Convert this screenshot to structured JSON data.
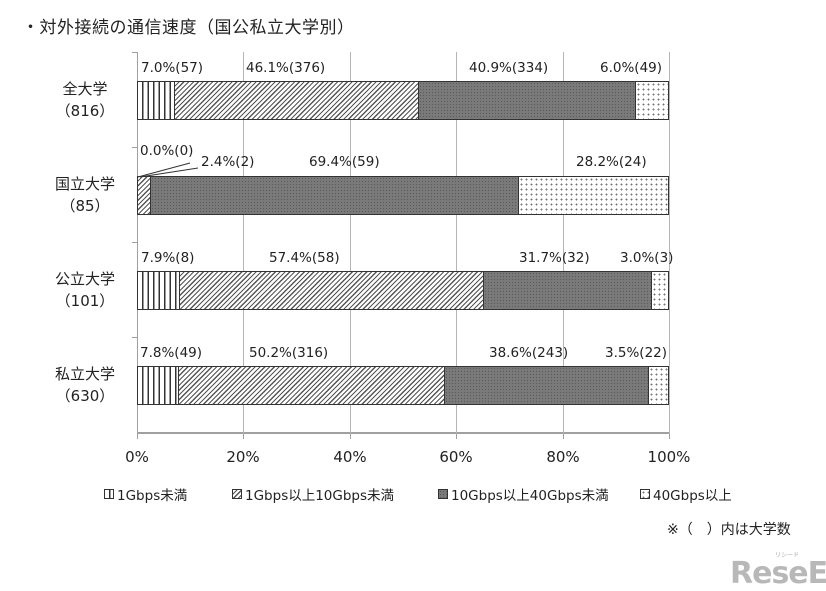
{
  "title": "・対外接続の通信速度（国公私立大学別）",
  "chart_data": {
    "type": "bar",
    "orientation": "horizontal",
    "stacked": true,
    "percent": true,
    "title": "・対外接続の通信速度（国公私立大学別）",
    "categories": [
      "全大学（816）",
      "国立大学（85）",
      "公立大学（101）",
      "私立大学（630）"
    ],
    "category_names": [
      "全大学",
      "国立大学",
      "公立大学",
      "私立大学"
    ],
    "category_counts": [
      "（816）",
      "（85）",
      "（101）",
      "（630）"
    ],
    "series": [
      {
        "name": "1Gbps未満",
        "pattern": "vertical-lines",
        "values": [
          7.0,
          0.0,
          7.9,
          7.8
        ],
        "counts": [
          57,
          0,
          8,
          49
        ]
      },
      {
        "name": "1Gbps以上10Gbps未満",
        "pattern": "diagonal-lines",
        "values": [
          46.1,
          2.4,
          57.4,
          50.2
        ],
        "counts": [
          376,
          2,
          58,
          316
        ]
      },
      {
        "name": "10Gbps以上40Gbps未満",
        "pattern": "dark-fine-dots",
        "values": [
          40.9,
          69.4,
          31.7,
          38.6
        ],
        "counts": [
          334,
          59,
          32,
          243
        ]
      },
      {
        "name": "40Gbps以上",
        "pattern": "light-dots",
        "values": [
          6.0,
          28.2,
          3.0,
          3.5
        ],
        "counts": [
          49,
          24,
          3,
          22
        ]
      }
    ],
    "data_labels": [
      [
        "7.0%(57)",
        "46.1%(376)",
        "40.9%(334)",
        "6.0%(49)"
      ],
      [
        "0.0%(0)",
        "2.4%(2)",
        "69.4%(59)",
        "28.2%(24)"
      ],
      [
        "7.9%(8)",
        "57.4%(58)",
        "31.7%(32)",
        "3.0%(3)"
      ],
      [
        "7.8%(49)",
        "50.2%(316)",
        "38.6%(243)",
        "3.5%(22)"
      ]
    ],
    "xlabel": "",
    "ylabel": "",
    "xlim": [
      0,
      100
    ],
    "x_ticks": [
      "0%",
      "20%",
      "40%",
      "60%",
      "80%",
      "100%"
    ],
    "grid": true,
    "legend_position": "bottom",
    "annotation": "※（ ）内は大学数"
  },
  "legend": [
    {
      "label": "1Gbps未満"
    },
    {
      "label": "1Gbps以上10Gbps未満"
    },
    {
      "label": "10Gbps以上40Gbps未満"
    },
    {
      "label": "40Gbps以上"
    }
  ],
  "note": "※（　）内は大学数",
  "watermark": {
    "main": "ReseEd",
    "sub": "リシード"
  }
}
